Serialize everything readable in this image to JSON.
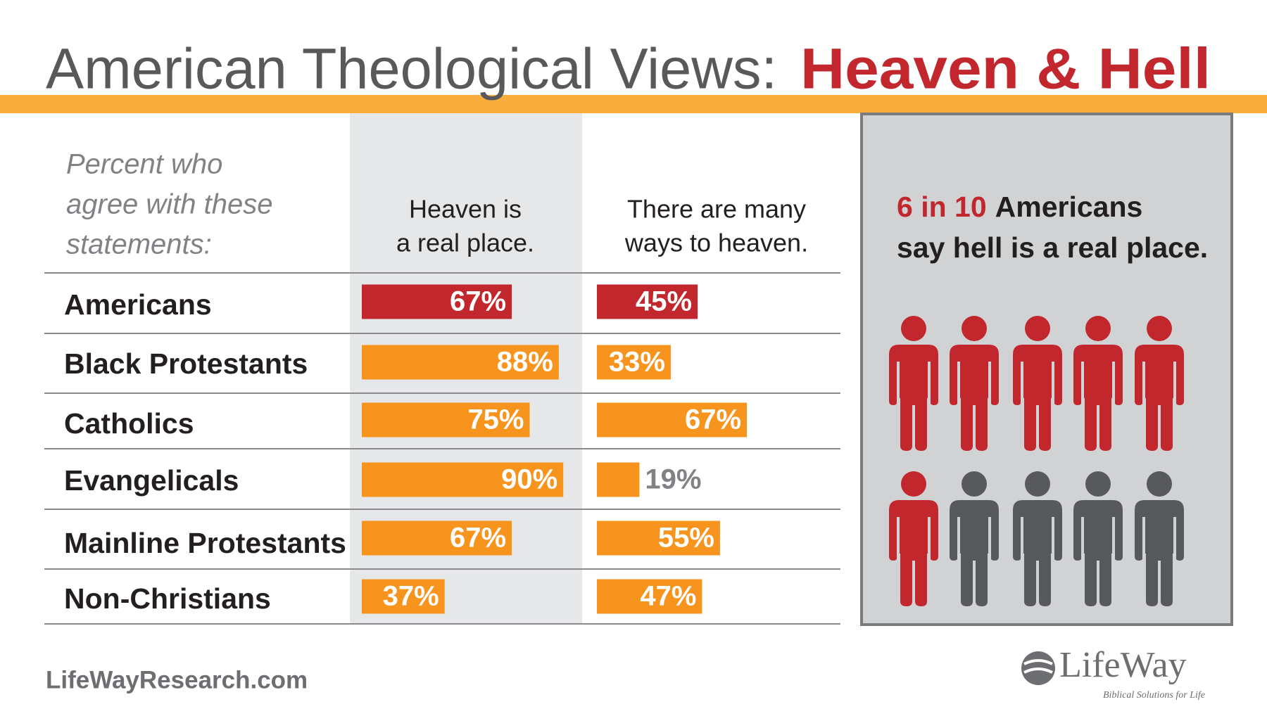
{
  "chart_data": {
    "type": "bar",
    "title": "American Theological Views:",
    "title_highlight": "Heaven & Hell",
    "subtitle_lines": [
      "Percent who",
      "agree with these",
      "statements:"
    ],
    "categories": [
      "Americans",
      "Black Protestants",
      "Catholics",
      "Evangelicals",
      "Mainline Protestants",
      "Non-Christians"
    ],
    "series": [
      {
        "name_lines": [
          "Heaven is",
          "a real place."
        ],
        "colors": [
          "#c1272d",
          "#f7941d",
          "#f7941d",
          "#f7941d",
          "#f7941d",
          "#f7941d"
        ],
        "values": [
          67,
          88,
          75,
          90,
          67,
          37
        ],
        "value_labels": [
          "67%",
          "88%",
          "75%",
          "90%",
          "67%",
          "37%"
        ]
      },
      {
        "name_lines": [
          "There are many",
          "ways to heaven."
        ],
        "colors": [
          "#c1272d",
          "#f7941d",
          "#f7941d",
          "#f7941d",
          "#f7941d",
          "#f7941d"
        ],
        "values": [
          45,
          33,
          67,
          19,
          55,
          47
        ],
        "value_labels": [
          "45%",
          "33%",
          "67%",
          "19%",
          "55%",
          "47%"
        ]
      }
    ],
    "callout": {
      "highlight": "6 in 10",
      "lines": [
        "Americans",
        "say hell is a real place."
      ],
      "icons_highlighted": 6,
      "icons_total": 10,
      "highlight_color": "#c1272d",
      "color": "#58595b"
    }
  },
  "footer": {
    "url": "LifeWayResearch.com",
    "logo": "LifeWay",
    "tagline": "Biblical Solutions for Life"
  }
}
